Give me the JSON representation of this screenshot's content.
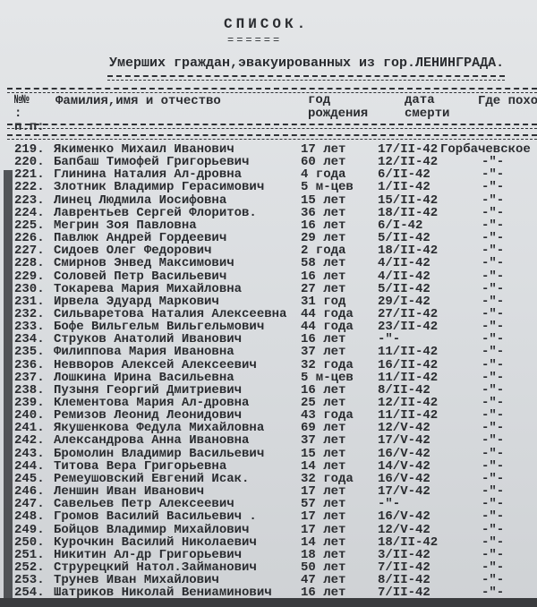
{
  "document": {
    "title": "СПИСОК.",
    "title_underline": "======",
    "subtitle": "Умерших граждан,эвакуированных из гор.ЛЕНИНГРАДА.",
    "headers": {
      "number": "№№ : п.п:",
      "name": "Фамилия,имя и отчество",
      "birth": "год рождения",
      "death": "дата смерти",
      "place": "Где похо"
    },
    "rows": [
      {
        "n": "219.",
        "name": "Якименко Михаил Иванович",
        "age": "17 лет",
        "date": "17/II-42",
        "place": "Горбачевское"
      },
      {
        "n": "220.",
        "name": "Бапбаш Тимофей Григорьевич",
        "age": "60 лет",
        "date": "12/II-42",
        "place": "-\"-"
      },
      {
        "n": "221.",
        "name": "Глинина Наталия Ал-дровна",
        "age": "4 года",
        "date": "6/II-42",
        "place": "-\"-"
      },
      {
        "n": "222.",
        "name": "Злотник Владимир Герасимович",
        "age": "5 м-цев",
        "date": "1/II-42",
        "place": "-\"-"
      },
      {
        "n": "223.",
        "name": "Линец Людмила Иосифовна",
        "age": "15 лет",
        "date": "15/II-42",
        "place": "-\"-"
      },
      {
        "n": "224.",
        "name": "Лаврентьев Сергей Флоритов.",
        "age": "36 лет",
        "date": "18/II-42",
        "place": "-\"-"
      },
      {
        "n": "225.",
        "name": "Мегрин Зоя Павловна",
        "age": "16 лет",
        "date": "6/I-42",
        "place": "-\"-"
      },
      {
        "n": "226.",
        "name": "Павлюк Андрей Гордеевич",
        "age": "29 лет",
        "date": "5/II-42",
        "place": "-\"-"
      },
      {
        "n": "227.",
        "name": "Сидоев Олег Федорович",
        "age": "2 года",
        "date": "18/II-42",
        "place": "-\"-"
      },
      {
        "n": "228.",
        "name": "Смирнов Энвед Максимович",
        "age": "58 лет",
        "date": "4/II-42",
        "place": "-\"-"
      },
      {
        "n": "229.",
        "name": "Соловей Петр Васильевич",
        "age": "16 лет",
        "date": "4/II-42",
        "place": "-\"-"
      },
      {
        "n": "230.",
        "name": "Токарева Мария Михайловна",
        "age": "27 лет",
        "date": "5/II-42",
        "place": "-\"-"
      },
      {
        "n": "231.",
        "name": "Ирвела Эдуард Маркович",
        "age": "31 год",
        "date": "29/I-42",
        "place": "-\"-"
      },
      {
        "n": "232.",
        "name": "Сильваретова Наталия Алексеевна",
        "age": "44 года",
        "date": "27/II-42",
        "place": "-\"-"
      },
      {
        "n": "233.",
        "name": "Бофе Вильгельм Вильгельмович",
        "age": "44 года",
        "date": "23/II-42",
        "place": "-\"-"
      },
      {
        "n": "234.",
        "name": "Струков Анатолий Иванович",
        "age": "16 лет",
        "date": "-\"-",
        "place": "-\"-"
      },
      {
        "n": "235.",
        "name": "Филиппова Мария Ивановна",
        "age": "37 лет",
        "date": "11/II-42",
        "place": "-\"-"
      },
      {
        "n": "236.",
        "name": "Невворов Алексей Алексеевич",
        "age": "32 года",
        "date": "16/II-42",
        "place": "-\"-"
      },
      {
        "n": "237.",
        "name": "Лошкина Ирина Васильевна",
        "age": "5 м-цев",
        "date": "11/II-42",
        "place": "-\"-"
      },
      {
        "n": "238.",
        "name": "Пузыня Георгий Дмитриевич",
        "age": "16 лет",
        "date": "8/II-42",
        "place": "-\"-"
      },
      {
        "n": "239.",
        "name": "Клементова Мария Ал-дровна",
        "age": "25 лет",
        "date": "12/II-42",
        "place": "-\"-"
      },
      {
        "n": "240.",
        "name": "Ремизов Леонид Леонидович",
        "age": "43 года",
        "date": "11/II-42",
        "place": "-\"-"
      },
      {
        "n": "241.",
        "name": "Якушенкова Федула Михайловна",
        "age": "69 лет",
        "date": "12/V-42",
        "place": "-\"-"
      },
      {
        "n": "242.",
        "name": "Александрова Анна Ивановна",
        "age": "37 лет",
        "date": "17/V-42",
        "place": "-\"-"
      },
      {
        "n": "243.",
        "name": "Бромолин Владимир Васильевич",
        "age": "15 лет",
        "date": "16/V-42",
        "place": "-\"-"
      },
      {
        "n": "244.",
        "name": "Титова Вера Григорьевна",
        "age": "14 лет",
        "date": "14/V-42",
        "place": "-\"-"
      },
      {
        "n": "245.",
        "name": "Ремеушовский Евгений Исак.",
        "age": "32 года",
        "date": "16/V-42",
        "place": "-\"-"
      },
      {
        "n": "246.",
        "name": "Леншин Иван Иванович",
        "age": "17 лет",
        "date": "17/V-42",
        "place": "-\"-"
      },
      {
        "n": "247.",
        "name": "Савельев Петр Алексеевич",
        "age": "57 лет",
        "date": "-\"-",
        "place": "-\"-"
      },
      {
        "n": "248.",
        "name": "Громов Василий Васильевич .",
        "age": "17 лет",
        "date": "16/V-42",
        "place": "-\"-"
      },
      {
        "n": "249.",
        "name": "Бойцов Владимир Михайлович",
        "age": "17 лет",
        "date": "12/V-42",
        "place": "-\"-"
      },
      {
        "n": "250.",
        "name": "Курочкин Василий Николаевич",
        "age": "14 лет",
        "date": "18/II-42",
        "place": "-\"-"
      },
      {
        "n": "251.",
        "name": "Никитин Ал-др Григорьевич",
        "age": "18 лет",
        "date": "3/II-42",
        "place": "-\"-"
      },
      {
        "n": "252.",
        "name": "Струрецкий Натол.Займанович",
        "age": "50 лет",
        "date": "7/II-42",
        "place": "-\"-"
      },
      {
        "n": "253.",
        "name": "Трунев Иван Михайлович",
        "age": "47 лет",
        "date": "8/II-42",
        "place": "-\"-"
      },
      {
        "n": "254.",
        "name": "Шатриков Николай Вениаминович",
        "age": "16 лет",
        "date": "7/II-42",
        "place": "-\"-"
      }
    ]
  }
}
